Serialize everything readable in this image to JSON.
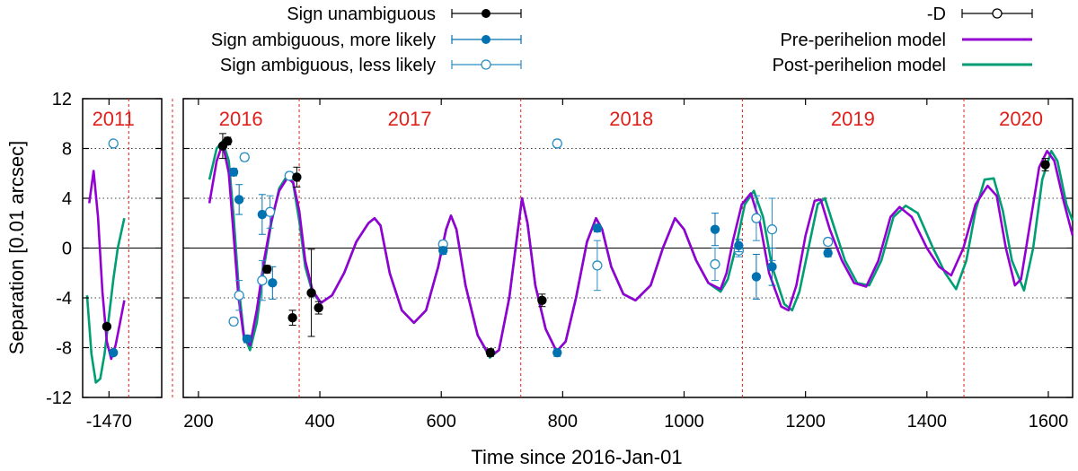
{
  "chart_data": {
    "type": "scatter",
    "xlabel": "Time since 2016-Jan-01",
    "ylabel": "Separation [0.01 arcsec]",
    "ylim": [
      -12,
      12
    ],
    "yticks": [
      -12,
      -8,
      -4,
      0,
      4,
      8,
      12
    ],
    "panels": [
      {
        "name": "left",
        "xlim": [
          -1482,
          -1446
        ],
        "xticks": [
          -1470
        ]
      },
      {
        "name": "right",
        "xlim": [
          175,
          1640
        ],
        "xticks": [
          200,
          400,
          600,
          800,
          1000,
          1200,
          1400,
          1600
        ]
      }
    ],
    "year_boundaries": [
      -1461,
      0,
      366,
      731,
      1096,
      1461
    ],
    "years": [
      {
        "label": "2011",
        "panel": 0,
        "x": -1468
      },
      {
        "label": "2016",
        "panel": 1,
        "x": 270
      },
      {
        "label": "2017",
        "panel": 1,
        "x": 548
      },
      {
        "label": "2018",
        "panel": 1,
        "x": 913
      },
      {
        "label": "2019",
        "panel": 1,
        "x": 1278
      },
      {
        "label": "2020",
        "panel": 1,
        "x": 1555
      }
    ],
    "legend": {
      "sign_unambiguous": "Sign unambiguous",
      "ambiguous_more": "Sign ambiguous, more likely",
      "ambiguous_less": "Sign ambiguous, less likely",
      "minus_d": "-D",
      "pre_model": "Pre-perihelion model",
      "post_model": "Post-perihelion model"
    },
    "colors": {
      "pre": "#9400d3",
      "post": "#009e73",
      "point_blue": "#0072b2",
      "year": "#e0201a",
      "black": "#000000"
    },
    "models": {
      "pre": {
        "left": [
          [
            -1479,
            3.6
          ],
          [
            -1477,
            6.2
          ],
          [
            -1475,
            2.5
          ],
          [
            -1473,
            -3.5
          ],
          [
            -1471,
            -7.5
          ],
          [
            -1469,
            -8.9
          ],
          [
            -1467,
            -7.8
          ],
          [
            -1465,
            -6.0
          ],
          [
            -1463,
            -4.2
          ]
        ],
        "right": [
          [
            218,
            3.6
          ],
          [
            230,
            7.0
          ],
          [
            240,
            8.4
          ],
          [
            250,
            6.0
          ],
          [
            258,
            1.0
          ],
          [
            266,
            -4.0
          ],
          [
            275,
            -7.2
          ],
          [
            285,
            -7.8
          ],
          [
            296,
            -5.0
          ],
          [
            308,
            -1.0
          ],
          [
            320,
            2.2
          ],
          [
            333,
            4.6
          ],
          [
            346,
            5.6
          ],
          [
            356,
            5.3
          ],
          [
            366,
            3.0
          ],
          [
            376,
            -1.0
          ],
          [
            388,
            -3.4
          ],
          [
            402,
            -4.4
          ],
          [
            420,
            -3.8
          ],
          [
            440,
            -2.0
          ],
          [
            460,
            0.5
          ],
          [
            480,
            2.0
          ],
          [
            490,
            2.4
          ],
          [
            500,
            1.8
          ],
          [
            515,
            -2.0
          ],
          [
            535,
            -5.0
          ],
          [
            555,
            -6.0
          ],
          [
            575,
            -5.0
          ],
          [
            595,
            -1.5
          ],
          [
            608,
            1.5
          ],
          [
            616,
            2.6
          ],
          [
            625,
            1.5
          ],
          [
            640,
            -3.0
          ],
          [
            660,
            -7.0
          ],
          [
            680,
            -8.7
          ],
          [
            695,
            -8.2
          ],
          [
            712,
            -4.0
          ],
          [
            725,
            1.0
          ],
          [
            733,
            4.0
          ],
          [
            742,
            2.0
          ],
          [
            755,
            -3.0
          ],
          [
            772,
            -6.5
          ],
          [
            790,
            -8.3
          ],
          [
            805,
            -7.5
          ],
          [
            822,
            -4.0
          ],
          [
            840,
            0.5
          ],
          [
            855,
            2.4
          ],
          [
            865,
            1.5
          ],
          [
            880,
            -1.5
          ],
          [
            900,
            -3.7
          ],
          [
            920,
            -4.2
          ],
          [
            945,
            -3.0
          ],
          [
            965,
            0.0
          ],
          [
            985,
            2.4
          ],
          [
            1000,
            1.5
          ],
          [
            1020,
            -1.0
          ],
          [
            1040,
            -2.8
          ],
          [
            1060,
            -3.3
          ],
          [
            1070,
            -2.0
          ],
          [
            1080,
            0.5
          ],
          [
            1095,
            3.5
          ],
          [
            1110,
            4.4
          ],
          [
            1125,
            2.0
          ],
          [
            1140,
            -2.0
          ],
          [
            1160,
            -4.7
          ],
          [
            1172,
            -5.0
          ],
          [
            1185,
            -3.0
          ],
          [
            1200,
            1.0
          ],
          [
            1215,
            3.8
          ],
          [
            1225,
            3.9
          ],
          [
            1240,
            1.5
          ],
          [
            1260,
            -1.0
          ],
          [
            1280,
            -2.8
          ],
          [
            1300,
            -3.1
          ],
          [
            1320,
            -1.0
          ],
          [
            1340,
            2.5
          ],
          [
            1355,
            3.3
          ],
          [
            1375,
            2.5
          ],
          [
            1400,
            0.0
          ],
          [
            1420,
            -1.5
          ],
          [
            1440,
            -2.2
          ],
          [
            1460,
            0.0
          ],
          [
            1480,
            3.5
          ],
          [
            1500,
            5.0
          ],
          [
            1515,
            4.2
          ],
          [
            1530,
            0.0
          ],
          [
            1545,
            -3.0
          ],
          [
            1555,
            -2.5
          ],
          [
            1570,
            2.0
          ],
          [
            1585,
            6.5
          ],
          [
            1598,
            7.8
          ],
          [
            1610,
            7.0
          ],
          [
            1625,
            3.8
          ],
          [
            1640,
            1.0
          ]
        ]
      },
      "post": {
        "left": [
          [
            -1480,
            -3.8
          ],
          [
            -1478,
            -8.5
          ],
          [
            -1476,
            -10.8
          ],
          [
            -1474,
            -10.5
          ],
          [
            -1472,
            -8.5
          ],
          [
            -1470,
            -5.5
          ],
          [
            -1468,
            -2.5
          ],
          [
            -1466,
            0.0
          ],
          [
            -1463,
            2.4
          ]
        ],
        "right": [
          [
            218,
            5.5
          ],
          [
            230,
            8.0
          ],
          [
            240,
            8.6
          ],
          [
            250,
            7.0
          ],
          [
            258,
            2.5
          ],
          [
            266,
            -3.0
          ],
          [
            275,
            -7.0
          ],
          [
            285,
            -8.2
          ],
          [
            296,
            -6.0
          ],
          [
            308,
            -1.5
          ],
          [
            320,
            2.0
          ],
          [
            333,
            4.8
          ],
          [
            346,
            5.8
          ],
          [
            356,
            5.2
          ],
          [
            366,
            2.2
          ],
          [
            376,
            -1.5
          ],
          [
            388,
            -3.6
          ],
          [
            402,
            -4.4
          ],
          [
            420,
            -3.8
          ],
          [
            440,
            -2.0
          ],
          [
            460,
            0.5
          ],
          [
            480,
            2.0
          ],
          [
            490,
            2.4
          ],
          [
            500,
            1.8
          ],
          [
            515,
            -2.0
          ],
          [
            535,
            -5.0
          ],
          [
            555,
            -6.0
          ],
          [
            575,
            -5.0
          ],
          [
            595,
            -1.5
          ],
          [
            608,
            1.5
          ],
          [
            616,
            2.6
          ],
          [
            625,
            1.5
          ],
          [
            640,
            -3.0
          ],
          [
            660,
            -7.0
          ],
          [
            680,
            -8.8
          ],
          [
            695,
            -8.2
          ],
          [
            712,
            -4.0
          ],
          [
            725,
            1.0
          ],
          [
            733,
            4.0
          ],
          [
            742,
            2.0
          ],
          [
            755,
            -3.0
          ],
          [
            772,
            -6.5
          ],
          [
            790,
            -8.3
          ],
          [
            805,
            -7.5
          ],
          [
            822,
            -4.0
          ],
          [
            840,
            0.5
          ],
          [
            855,
            2.4
          ],
          [
            865,
            1.5
          ],
          [
            880,
            -1.5
          ],
          [
            900,
            -3.7
          ],
          [
            920,
            -4.2
          ],
          [
            945,
            -3.0
          ],
          [
            965,
            0.0
          ],
          [
            985,
            2.4
          ],
          [
            1000,
            1.5
          ],
          [
            1020,
            -1.0
          ],
          [
            1040,
            -2.8
          ],
          [
            1060,
            -3.5
          ],
          [
            1072,
            -2.5
          ],
          [
            1085,
            0.0
          ],
          [
            1100,
            3.5
          ],
          [
            1115,
            4.6
          ],
          [
            1130,
            2.5
          ],
          [
            1145,
            -1.5
          ],
          [
            1165,
            -4.5
          ],
          [
            1178,
            -5.0
          ],
          [
            1190,
            -3.5
          ],
          [
            1205,
            0.0
          ],
          [
            1220,
            3.5
          ],
          [
            1232,
            4.0
          ],
          [
            1245,
            2.0
          ],
          [
            1265,
            -1.0
          ],
          [
            1285,
            -2.8
          ],
          [
            1305,
            -3.0
          ],
          [
            1325,
            -1.0
          ],
          [
            1345,
            2.5
          ],
          [
            1365,
            3.4
          ],
          [
            1385,
            2.8
          ],
          [
            1410,
            0.0
          ],
          [
            1430,
            -2.0
          ],
          [
            1448,
            -3.3
          ],
          [
            1465,
            -1.0
          ],
          [
            1480,
            3.0
          ],
          [
            1495,
            5.5
          ],
          [
            1510,
            5.6
          ],
          [
            1525,
            3.0
          ],
          [
            1540,
            -1.0
          ],
          [
            1560,
            -3.4
          ],
          [
            1575,
            0.0
          ],
          [
            1590,
            5.5
          ],
          [
            1605,
            7.8
          ],
          [
            1615,
            7.0
          ],
          [
            1630,
            3.5
          ],
          [
            1640,
            2.2
          ]
        ]
      }
    },
    "points": {
      "unambiguous": [
        {
          "x": -1471,
          "y": -6.3,
          "err": 0.2
        },
        {
          "x": 240,
          "y": 8.2,
          "err": 1.0
        },
        {
          "x": 248,
          "y": 8.6,
          "err": 0.3
        },
        {
          "x": 313,
          "y": -1.7,
          "err": 0.3
        },
        {
          "x": 355,
          "y": -5.6,
          "err": 0.6
        },
        {
          "x": 362,
          "y": 5.7,
          "err": 0.8
        },
        {
          "x": 386,
          "y": -3.6,
          "err": 3.5
        },
        {
          "x": 398,
          "y": -4.8,
          "err": 0.5
        },
        {
          "x": 681,
          "y": -8.4,
          "err": 0.3
        },
        {
          "x": 766,
          "y": -4.2,
          "err": 0.5
        },
        {
          "x": 1595,
          "y": 6.7,
          "err": 0.5
        }
      ],
      "ambiguous_more": [
        {
          "x": -1468,
          "y": -8.4,
          "err": 0.2
        },
        {
          "x": 258,
          "y": 6.1,
          "err": 0.3
        },
        {
          "x": 267,
          "y": 3.9,
          "err": 1.2
        },
        {
          "x": 280,
          "y": -7.3,
          "err": 0.3
        },
        {
          "x": 305,
          "y": 2.7,
          "err": 1.6
        },
        {
          "x": 322,
          "y": -2.8,
          "err": 1.3
        },
        {
          "x": 603,
          "y": -0.2,
          "err": 0.3
        },
        {
          "x": 791,
          "y": -8.4,
          "err": 0.3
        },
        {
          "x": 857,
          "y": 1.6,
          "err": 0.3
        },
        {
          "x": 1051,
          "y": 1.5,
          "err": 1.3
        },
        {
          "x": 1090,
          "y": 0.2,
          "err": 0.5
        },
        {
          "x": 1119,
          "y": -2.3,
          "err": 1.8
        },
        {
          "x": 1145,
          "y": -1.5,
          "err": 1.5
        },
        {
          "x": 1237,
          "y": -0.4,
          "err": 0.3
        }
      ],
      "ambiguous_less": [
        {
          "x": -1468,
          "y": 8.4,
          "err": 0.2
        },
        {
          "x": 258,
          "y": -5.9,
          "err": 0.3
        },
        {
          "x": 267,
          "y": -3.8,
          "err": 1.2
        },
        {
          "x": 276,
          "y": 7.3,
          "err": 0.3
        },
        {
          "x": 305,
          "y": -2.6,
          "err": 1.6
        },
        {
          "x": 318,
          "y": 2.9,
          "err": 1.3
        },
        {
          "x": 350,
          "y": 5.8,
          "err": 0.3
        },
        {
          "x": 603,
          "y": 0.3,
          "err": 0.3
        },
        {
          "x": 791,
          "y": 8.4,
          "err": 0.3
        },
        {
          "x": 857,
          "y": -1.4,
          "err": 2.0
        },
        {
          "x": 1051,
          "y": -1.3,
          "err": 1.3
        },
        {
          "x": 1090,
          "y": -0.2,
          "err": 0.5
        },
        {
          "x": 1119,
          "y": 2.4,
          "err": 1.8
        },
        {
          "x": 1145,
          "y": 1.5,
          "err": 2.5
        },
        {
          "x": 1237,
          "y": 0.5,
          "err": 0.3
        }
      ]
    }
  }
}
